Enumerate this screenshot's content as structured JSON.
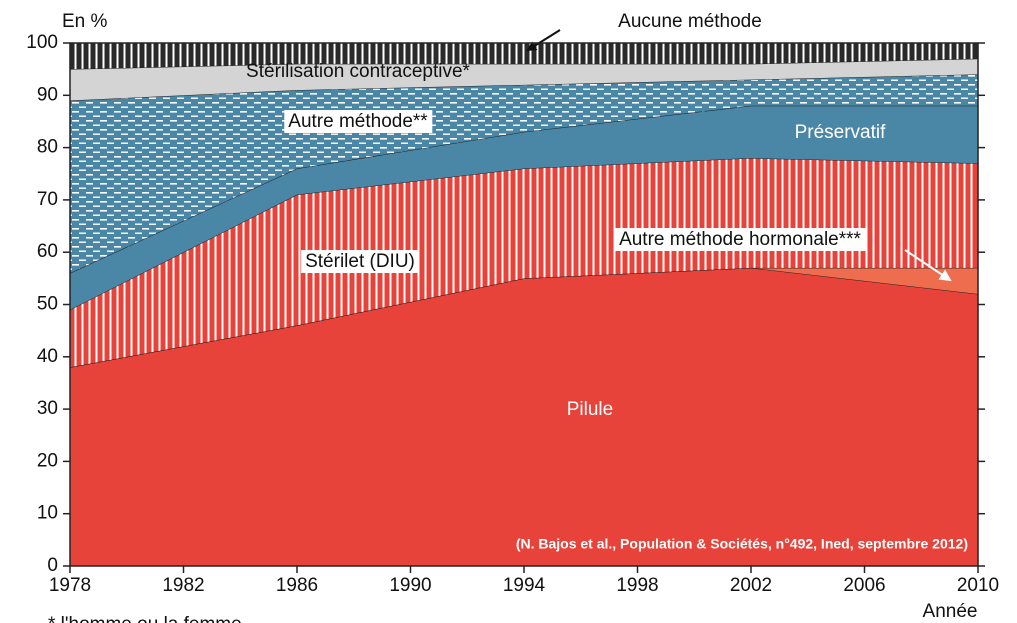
{
  "chart_data": {
    "type": "stacked-area",
    "y_label": "En %",
    "x_label": "Année",
    "footnote": "* l'homme ou la femme",
    "source": "(N. Bajos et al., Population & Sociétés, n°492, Ined, septembre 2012)",
    "x": [
      1978,
      1986,
      1994,
      2002,
      2010
    ],
    "xlim": [
      1978,
      2010
    ],
    "xticks": [
      1978,
      1982,
      1986,
      1990,
      1994,
      1998,
      2002,
      2006,
      2010
    ],
    "ylim": [
      0,
      100
    ],
    "yticks": [
      0,
      10,
      20,
      30,
      40,
      50,
      60,
      70,
      80,
      90,
      100
    ],
    "series": [
      {
        "name": "Pilule",
        "color": "#e8433a",
        "values": [
          38,
          46,
          55,
          57,
          52
        ]
      },
      {
        "name": "Autre méthode hormonale***",
        "color": "#ef6d4f",
        "values": [
          0,
          0,
          0,
          0,
          5
        ]
      },
      {
        "name": "Stérilet (DIU)",
        "color": "#e8433a",
        "hatch": "vertical",
        "values": [
          11,
          25,
          21,
          21,
          20
        ]
      },
      {
        "name": "Préservatif",
        "color": "#4a87a6",
        "values": [
          7,
          5,
          7,
          10,
          11
        ]
      },
      {
        "name": "Autre méthode**",
        "color": "#4a87a6",
        "hatch": "dashes",
        "values": [
          33,
          15,
          9,
          5,
          6
        ]
      },
      {
        "name": "Stérilisation contraceptive*",
        "color": "#d4d4d4",
        "values": [
          6,
          5,
          4,
          3,
          3
        ]
      },
      {
        "name": "Aucune méthode",
        "color": "#2a2a2a",
        "hatch": "vertical",
        "values": [
          5,
          4,
          4,
          4,
          3
        ]
      }
    ]
  }
}
